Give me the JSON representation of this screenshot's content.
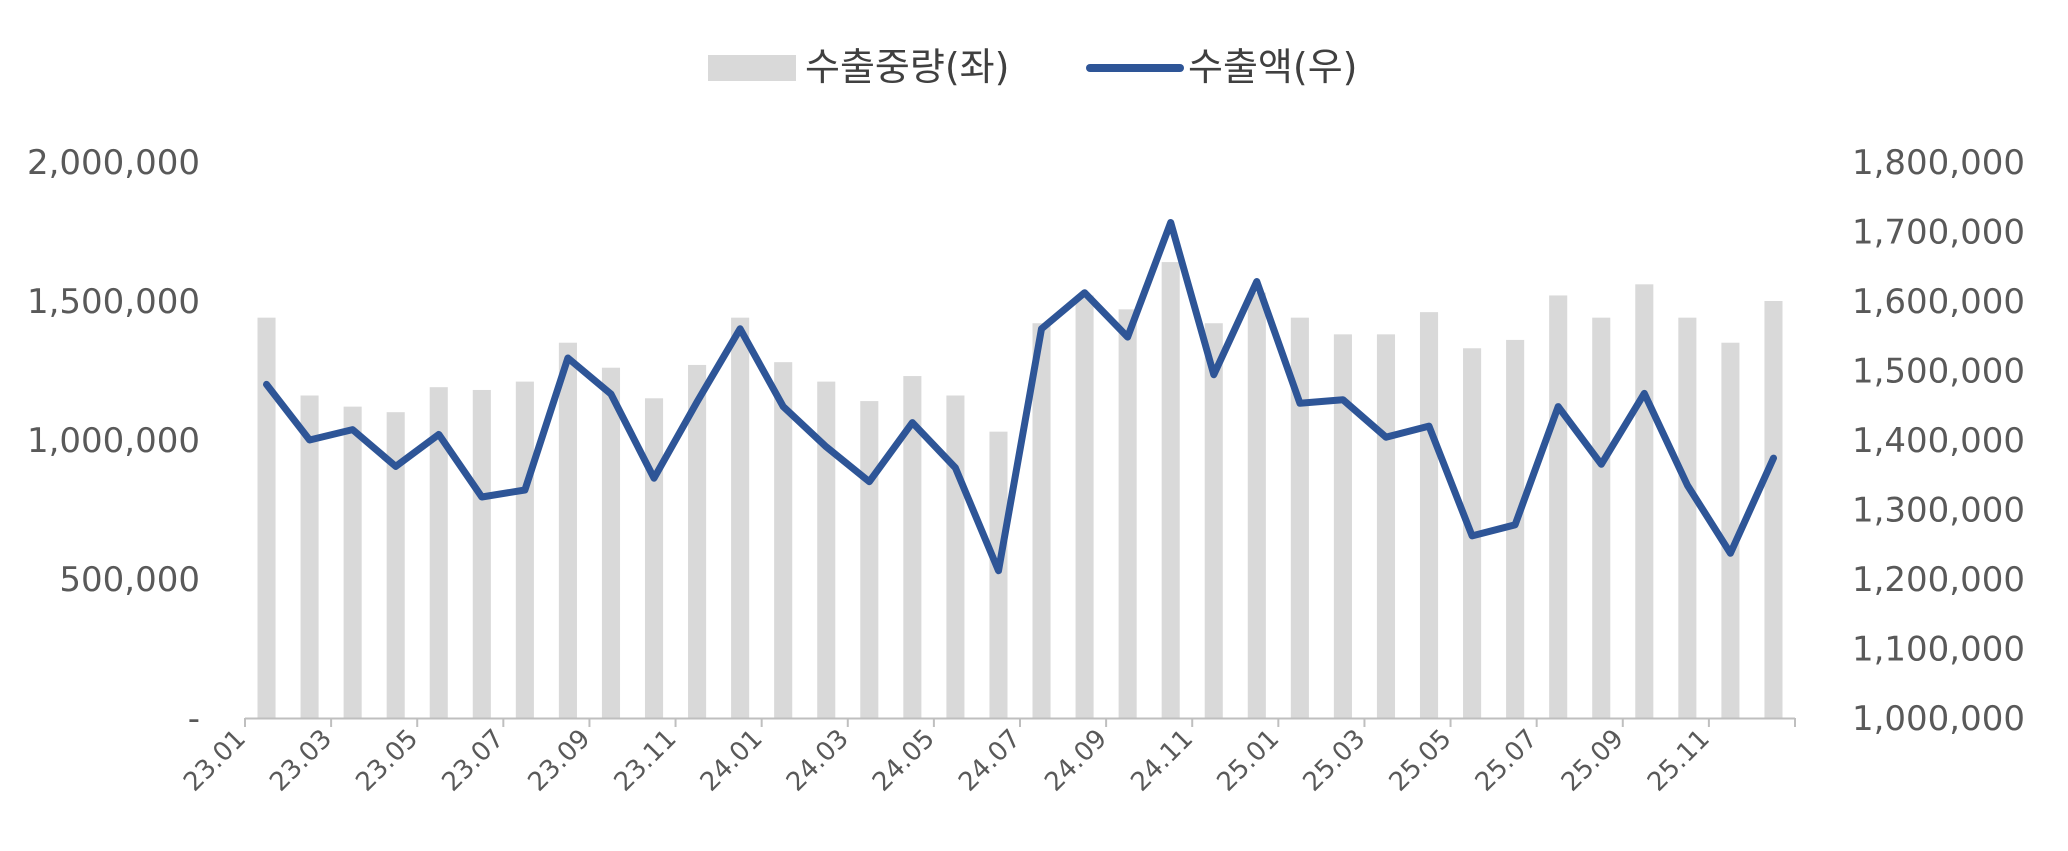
{
  "chart_data": {
    "type": "bar+line",
    "categories": [
      "23.01",
      "23.02",
      "23.03",
      "23.04",
      "23.05",
      "23.06",
      "23.07",
      "23.08",
      "23.09",
      "23.10",
      "23.11",
      "23.12",
      "24.01",
      "24.02",
      "24.03",
      "24.04",
      "24.05",
      "24.06",
      "24.07",
      "24.08",
      "24.09",
      "24.10",
      "24.11",
      "24.12",
      "25.01",
      "25.02",
      "25.03",
      "25.04",
      "25.05",
      "25.06",
      "25.07",
      "25.08",
      "25.09",
      "25.10",
      "25.11",
      "25.12"
    ],
    "x_tick_labels": [
      "23.01",
      "23.03",
      "23.05",
      "23.07",
      "23.09",
      "23.11",
      "24.01",
      "24.03",
      "24.05",
      "24.07",
      "24.09",
      "24.11",
      "25.01",
      "25.03",
      "25.05",
      "25.07",
      "25.09",
      "25.11"
    ],
    "legend": {
      "position": "top",
      "bar_label": "수출중량(좌)",
      "line_label": "수출액(우)"
    },
    "series": [
      {
        "name": "수출중량(좌)",
        "type": "bar",
        "axis": "left",
        "color": "#d9d9d9",
        "values": [
          1440000,
          1160000,
          1120000,
          1100000,
          1190000,
          1180000,
          1210000,
          1350000,
          1260000,
          1150000,
          1270000,
          1440000,
          1280000,
          1210000,
          1140000,
          1230000,
          1160000,
          1030000,
          1420000,
          1520000,
          1470000,
          1640000,
          1420000,
          1530000,
          1440000,
          1380000,
          1380000,
          1460000,
          1330000,
          1360000,
          1520000,
          1440000,
          1560000,
          1440000,
          1350000,
          1500000
        ]
      },
      {
        "name": "수출액(우)",
        "type": "line",
        "axis": "right",
        "color": "#2e5597",
        "values": [
          1480000,
          1400000,
          1415000,
          1362000,
          1408000,
          1318000,
          1328000,
          1518000,
          1466000,
          1345000,
          1455000,
          1560000,
          1448000,
          1390000,
          1340000,
          1425000,
          1360000,
          1212000,
          1560000,
          1612000,
          1548000,
          1713000,
          1494000,
          1628000,
          1453000,
          1458000,
          1404000,
          1420000,
          1262000,
          1278000,
          1448000,
          1365000,
          1467000,
          1335000,
          1237000,
          1374000
        ]
      }
    ],
    "left_axis": {
      "ylim": [
        0,
        2000000
      ],
      "ticks": [
        0,
        500000,
        1000000,
        1500000,
        2000000
      ],
      "tick_labels": [
        "-",
        "500,000",
        "1,000,000",
        "1,500,000",
        "2,000,000"
      ]
    },
    "right_axis": {
      "ylim": [
        1000000,
        1800000
      ],
      "ticks": [
        1000000,
        1100000,
        1200000,
        1300000,
        1400000,
        1500000,
        1600000,
        1700000,
        1800000
      ],
      "tick_labels": [
        "1,000,000",
        "1,100,000",
        "1,200,000",
        "1,300,000",
        "1,400,000",
        "1,500,000",
        "1,600,000",
        "1,700,000",
        "1,800,000"
      ]
    },
    "grid": false
  }
}
